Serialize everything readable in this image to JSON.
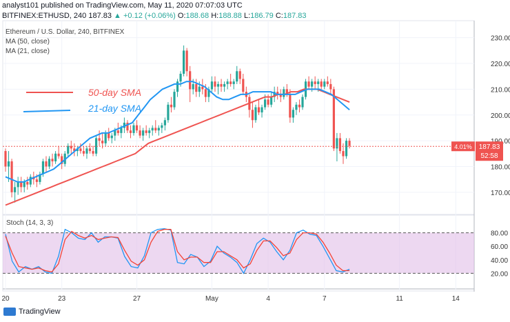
{
  "header": {
    "line1_prefix": "analyst101 published on TradingView.com, May 11, 2020 07:07:03 UTC",
    "symbol": "BITFINEX:ETHUSD, 240",
    "last": "187.83",
    "change": "▲ +0.12 (+0.06%)",
    "o_label": "O:",
    "o": "188.68",
    "h_label": "H:",
    "h": "188.88",
    "l_label": "L:",
    "l": "186.79",
    "c_label": "C:",
    "c": "187.83"
  },
  "legend": {
    "title": "Ethereum / U.S. Dollar, 240, BITFINEX",
    "ma50": "MA (50, close)",
    "ma21": "MA (21, close)"
  },
  "annotations": {
    "sma50": "50-day SMA",
    "sma21": "21-day SMA"
  },
  "price_badge": {
    "pct": "4.01%",
    "price": "187.83",
    "countdown": "52:58"
  },
  "stoch_label": "Stoch (14, 3, 3)",
  "footer": {
    "brand": "TradingView"
  },
  "colors": {
    "up": "#26a69a",
    "down": "#ef5350",
    "ma50": "#ef5350",
    "ma21": "#2196f3",
    "stoch_k": "#2196f3",
    "stoch_d": "#f44336",
    "stoch_band": "#e1bee7"
  },
  "chart_data": {
    "type": "candlestick",
    "y_ticks": [
      170,
      180,
      190,
      200,
      210,
      220,
      230
    ],
    "ylim": [
      163,
      235
    ],
    "x_ticks": [
      {
        "label": "20",
        "i": 0
      },
      {
        "label": "23",
        "i": 18
      },
      {
        "label": "27",
        "i": 42
      },
      {
        "label": "May",
        "i": 66
      },
      {
        "label": "4",
        "i": 84
      },
      {
        "label": "7",
        "i": 102
      },
      {
        "label": "11",
        "i": 126
      },
      {
        "label": "14",
        "i": 144
      }
    ],
    "x_count": 150,
    "candles": [
      [
        186,
        187,
        178,
        180
      ],
      [
        180,
        186,
        174,
        182
      ],
      [
        182,
        183,
        168,
        170
      ],
      [
        170,
        174,
        166,
        172
      ],
      [
        172,
        176,
        169,
        174
      ],
      [
        174,
        176,
        170,
        172
      ],
      [
        172,
        175,
        170,
        174
      ],
      [
        174,
        176,
        171,
        173
      ],
      [
        173,
        177,
        172,
        176
      ],
      [
        176,
        178,
        173,
        175
      ],
      [
        175,
        177,
        172,
        174
      ],
      [
        174,
        178,
        173,
        177
      ],
      [
        177,
        183,
        176,
        182
      ],
      [
        182,
        184,
        178,
        180
      ],
      [
        180,
        184,
        179,
        183
      ],
      [
        183,
        185,
        180,
        182
      ],
      [
        182,
        186,
        181,
        185
      ],
      [
        185,
        188,
        183,
        184
      ],
      [
        184,
        185,
        179,
        181
      ],
      [
        181,
        186,
        180,
        185
      ],
      [
        185,
        189,
        184,
        188
      ],
      [
        188,
        190,
        185,
        187
      ],
      [
        187,
        189,
        184,
        186
      ],
      [
        186,
        188,
        184,
        187
      ],
      [
        187,
        189,
        185,
        186
      ],
      [
        186,
        188,
        184,
        185
      ],
      [
        185,
        188,
        183,
        187
      ],
      [
        187,
        189,
        185,
        186
      ],
      [
        186,
        188,
        184,
        185
      ],
      [
        185,
        192,
        184,
        191
      ],
      [
        191,
        194,
        188,
        190
      ],
      [
        190,
        193,
        187,
        189
      ],
      [
        189,
        194,
        188,
        193
      ],
      [
        193,
        195,
        190,
        191
      ],
      [
        191,
        193,
        189,
        192
      ],
      [
        192,
        195,
        190,
        194
      ],
      [
        194,
        197,
        192,
        193
      ],
      [
        193,
        196,
        191,
        195
      ],
      [
        195,
        199,
        193,
        197
      ],
      [
        197,
        198,
        193,
        194
      ],
      [
        194,
        196,
        191,
        193
      ],
      [
        193,
        197,
        192,
        196
      ],
      [
        196,
        198,
        193,
        194
      ],
      [
        194,
        196,
        191,
        192
      ],
      [
        192,
        195,
        190,
        194
      ],
      [
        194,
        196,
        192,
        193
      ],
      [
        193,
        195,
        191,
        194
      ],
      [
        194,
        196,
        192,
        195
      ],
      [
        195,
        198,
        193,
        194
      ],
      [
        194,
        196,
        192,
        195
      ],
      [
        195,
        197,
        193,
        196
      ],
      [
        196,
        199,
        194,
        198
      ],
      [
        198,
        205,
        197,
        204
      ],
      [
        204,
        207,
        201,
        203
      ],
      [
        203,
        210,
        202,
        209
      ],
      [
        209,
        214,
        207,
        213
      ],
      [
        213,
        217,
        211,
        216
      ],
      [
        216,
        227,
        215,
        225
      ],
      [
        225,
        226,
        215,
        217
      ],
      [
        217,
        219,
        205,
        210
      ],
      [
        210,
        214,
        208,
        212
      ],
      [
        212,
        214,
        207,
        209
      ],
      [
        209,
        213,
        207,
        211
      ],
      [
        211,
        214,
        208,
        210
      ],
      [
        210,
        212,
        205,
        207
      ],
      [
        207,
        211,
        205,
        210
      ],
      [
        210,
        215,
        209,
        213
      ],
      [
        213,
        215,
        209,
        211
      ],
      [
        211,
        213,
        208,
        212
      ],
      [
        212,
        214,
        209,
        211
      ],
      [
        211,
        213,
        209,
        212
      ],
      [
        212,
        214,
        210,
        213
      ],
      [
        213,
        216,
        211,
        212
      ],
      [
        212,
        214,
        210,
        213
      ],
      [
        213,
        219,
        212,
        217
      ],
      [
        217,
        218,
        212,
        214
      ],
      [
        214,
        216,
        208,
        209
      ],
      [
        209,
        211,
        205,
        207
      ],
      [
        207,
        208,
        199,
        202
      ],
      [
        202,
        205,
        195,
        198
      ],
      [
        198,
        204,
        197,
        203
      ],
      [
        203,
        206,
        200,
        201
      ],
      [
        201,
        204,
        199,
        203
      ],
      [
        203,
        208,
        202,
        206
      ],
      [
        206,
        208,
        203,
        204
      ],
      [
        204,
        209,
        203,
        207
      ],
      [
        207,
        211,
        205,
        209
      ],
      [
        209,
        211,
        206,
        208
      ],
      [
        208,
        210,
        205,
        207
      ],
      [
        207,
        211,
        206,
        210
      ],
      [
        210,
        212,
        207,
        208
      ],
      [
        208,
        210,
        197,
        199
      ],
      [
        199,
        203,
        197,
        202
      ],
      [
        202,
        205,
        200,
        204
      ],
      [
        204,
        206,
        201,
        203
      ],
      [
        203,
        208,
        202,
        207
      ],
      [
        207,
        214,
        206,
        213
      ],
      [
        213,
        215,
        210,
        211
      ],
      [
        211,
        214,
        209,
        213
      ],
      [
        213,
        215,
        210,
        212
      ],
      [
        212,
        214,
        209,
        213
      ],
      [
        213,
        214,
        210,
        211
      ],
      [
        211,
        214,
        210,
        213
      ],
      [
        213,
        215,
        211,
        212
      ],
      [
        212,
        214,
        208,
        210
      ],
      [
        210,
        211,
        186,
        187
      ],
      [
        187,
        193,
        182,
        191
      ],
      [
        191,
        193,
        185,
        186
      ],
      [
        186,
        189,
        181,
        184
      ],
      [
        184,
        191,
        183,
        190
      ],
      [
        190,
        191,
        187,
        188
      ]
    ],
    "ma50": [
      165,
      166,
      167,
      168,
      169,
      170,
      171,
      172,
      173,
      174,
      175,
      176,
      177,
      178,
      179,
      180,
      181,
      182,
      183,
      184,
      185,
      187,
      189,
      190,
      191,
      192,
      193,
      194,
      195,
      196,
      197,
      198,
      199,
      200,
      201,
      202,
      203,
      204,
      205,
      206,
      207,
      207,
      208,
      208,
      209,
      209,
      210,
      210,
      210,
      209,
      208,
      207,
      206,
      205
    ],
    "ma21": [
      176,
      175,
      174,
      174,
      175,
      176,
      177,
      178,
      179,
      181,
      183,
      185,
      187,
      189,
      191,
      192,
      193,
      193,
      194,
      195,
      196,
      197,
      200,
      203,
      206,
      208,
      210,
      211,
      212,
      212,
      213,
      213,
      212,
      211,
      209,
      207,
      206,
      206,
      207,
      208,
      208,
      209,
      209,
      209,
      209,
      208,
      208,
      208,
      208,
      209,
      210,
      210,
      210,
      209,
      208,
      206,
      204,
      202
    ],
    "stoch": {
      "k": [
        78,
        38,
        22,
        30,
        26,
        30,
        22,
        20,
        45,
        85,
        80,
        72,
        70,
        80,
        66,
        74,
        74,
        72,
        45,
        30,
        28,
        46,
        80,
        85,
        86,
        84,
        36,
        34,
        48,
        44,
        30,
        38,
        60,
        50,
        44,
        36,
        20,
        40,
        64,
        72,
        66,
        52,
        40,
        54,
        80,
        84,
        78,
        76,
        60,
        42,
        24,
        22,
        26
      ],
      "d": [
        75,
        50,
        30,
        28,
        26,
        28,
        24,
        22,
        34,
        70,
        82,
        76,
        72,
        76,
        70,
        72,
        74,
        73,
        54,
        38,
        32,
        40,
        66,
        82,
        85,
        85,
        52,
        40,
        44,
        44,
        36,
        36,
        52,
        52,
        46,
        40,
        28,
        34,
        54,
        68,
        68,
        58,
        46,
        50,
        70,
        80,
        80,
        78,
        66,
        50,
        32,
        24,
        24
      ],
      "upper": 80,
      "lower": 20,
      "y_ticks": [
        20,
        40,
        60,
        80
      ]
    }
  }
}
